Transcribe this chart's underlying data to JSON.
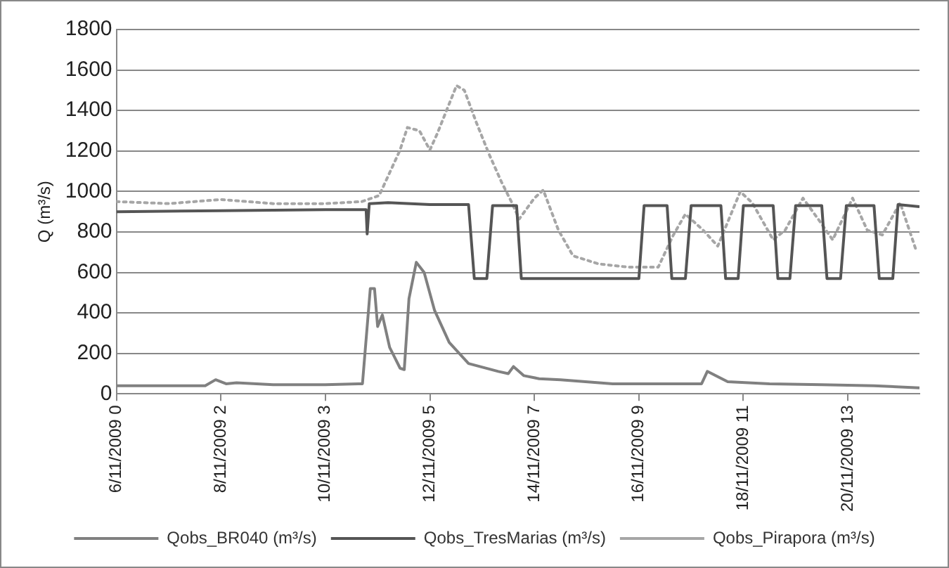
{
  "chart_data": {
    "type": "line",
    "ylabel": "Q (m³/s)",
    "xlim": [
      "2009-11-06",
      "2009-11-21T08:53"
    ],
    "ylim": [
      0,
      1800
    ],
    "yticks": [
      0,
      200,
      400,
      600,
      800,
      1000,
      1200,
      1400,
      1600,
      1800
    ],
    "xticks": [
      {
        "value": "2009-11-06",
        "label": "6/11/2009 0"
      },
      {
        "value": "2009-11-08",
        "label": "8/11/2009 2"
      },
      {
        "value": "2009-11-10",
        "label": "10/11/2009 3"
      },
      {
        "value": "2009-11-12",
        "label": "12/11/2009 5"
      },
      {
        "value": "2009-11-14",
        "label": "14/11/2009 7"
      },
      {
        "value": "2009-11-16",
        "label": "16/11/2009 9"
      },
      {
        "value": "2009-11-18",
        "label": "18/11/2009 11"
      },
      {
        "value": "2009-11-20",
        "label": "20/11/2009 13"
      }
    ],
    "grid": "y",
    "legend": "bottom",
    "marker": "none",
    "series": [
      {
        "name": "Qobs_BR040 (m³/s)",
        "color": "#808080",
        "line_style": "solid",
        "x": [
          "2009-11-06T00:00",
          "2009-11-07T16:48",
          "2009-11-07T21:36",
          "2009-11-08T02:24",
          "2009-11-08T07:12",
          "2009-11-09T00:00",
          "2009-11-10T00:00",
          "2009-11-10T17:02",
          "2009-11-10T20:38",
          "2009-11-10T22:34",
          "2009-11-11T00:00",
          "2009-11-11T02:10",
          "2009-11-11T05:31",
          "2009-11-11T10:19",
          "2009-11-11T12:14",
          "2009-11-11T14:24",
          "2009-11-11T17:46",
          "2009-11-11T21:22",
          "2009-11-12T02:10",
          "2009-11-12T08:53",
          "2009-11-12T17:46",
          "2009-11-13T07:26",
          "2009-11-13T12:00",
          "2009-11-13T14:24",
          "2009-11-13T19:12",
          "2009-11-14T02:10",
          "2009-11-14T12:00",
          "2009-11-15T12:00",
          "2009-11-16T12:00",
          "2009-11-17T04:48",
          "2009-11-17T07:26",
          "2009-11-17T16:48",
          "2009-11-18T12:00",
          "2009-11-19T12:00",
          "2009-11-20T12:00",
          "2009-11-21T08:53"
        ],
        "values": [
          40,
          40,
          70,
          50,
          55,
          45,
          45,
          50,
          520,
          520,
          333,
          390,
          230,
          127,
          120,
          470,
          650,
          600,
          412,
          254,
          150,
          111,
          100,
          135,
          90,
          75,
          70,
          50,
          50,
          50,
          111,
          60,
          50,
          45,
          40,
          30
        ]
      },
      {
        "name": "Qobs_TresMarias (m³/s)",
        "color": "#555555",
        "line_style": "solid",
        "x": [
          "2009-11-06T00:00",
          "2009-11-08T00:00",
          "2009-11-10T00:00",
          "2009-11-10T18:43",
          "2009-11-10T19:12",
          "2009-11-10T20:10",
          "2009-11-11T04:48",
          "2009-11-12T00:00",
          "2009-11-12T17:46",
          "2009-11-12T20:24",
          "2009-11-13T02:10",
          "2009-11-13T04:48",
          "2009-11-13T15:50",
          "2009-11-13T18:00",
          "2009-11-16T00:00",
          "2009-11-16T02:24",
          "2009-11-16T12:58",
          "2009-11-16T15:07",
          "2009-11-16T21:22",
          "2009-11-17T00:00",
          "2009-11-17T13:41",
          "2009-11-17T15:50",
          "2009-11-17T21:36",
          "2009-11-18T00:00",
          "2009-11-18T13:41",
          "2009-11-18T15:50",
          "2009-11-18T21:22",
          "2009-11-19T00:00",
          "2009-11-19T12:00",
          "2009-11-19T14:24",
          "2009-11-19T20:38",
          "2009-11-19T23:17",
          "2009-11-20T12:00",
          "2009-11-20T14:24",
          "2009-11-20T20:38",
          "2009-11-20T23:02",
          "2009-11-21T08:53"
        ],
        "values": [
          900,
          905,
          910,
          910,
          790,
          940,
          945,
          935,
          935,
          570,
          570,
          930,
          930,
          570,
          570,
          930,
          930,
          570,
          570,
          930,
          930,
          570,
          570,
          930,
          930,
          570,
          570,
          930,
          930,
          570,
          570,
          930,
          930,
          570,
          570,
          935,
          925
        ]
      },
      {
        "name": "Qobs_Pirapora (m³/s)",
        "color": "#a6a6a6",
        "line_style": "dotted",
        "x": [
          "2009-11-06T00:00",
          "2009-11-07T00:00",
          "2009-11-08T00:00",
          "2009-11-09T00:00",
          "2009-11-10T00:00",
          "2009-11-10T16:48",
          "2009-11-11T00:43",
          "2009-11-11T10:19",
          "2009-11-11T13:41",
          "2009-11-11T19:12",
          "2009-11-12T00:00",
          "2009-11-12T03:22",
          "2009-11-12T12:14",
          "2009-11-12T15:50",
          "2009-11-12T21:22",
          "2009-11-13T03:22",
          "2009-11-13T08:53",
          "2009-11-13T13:41",
          "2009-11-13T17:02",
          "2009-11-14T00:00",
          "2009-11-14T04:05",
          "2009-11-14T11:02",
          "2009-11-14T17:46",
          "2009-11-15T05:31",
          "2009-11-15T19:12",
          "2009-11-16T08:53",
          "2009-11-16T15:50",
          "2009-11-16T21:22",
          "2009-11-17T05:31",
          "2009-11-17T12:14",
          "2009-11-17T22:34",
          "2009-11-18T04:05",
          "2009-11-18T13:41",
          "2009-11-18T19:12",
          "2009-11-19T03:22",
          "2009-11-19T10:19",
          "2009-11-19T17:02",
          "2009-11-20T02:10",
          "2009-11-20T08:53",
          "2009-11-20T15:50",
          "2009-11-21T00:00",
          "2009-11-21T07:26"
        ],
        "values": [
          950,
          940,
          960,
          940,
          940,
          950,
          980,
          1205,
          1316,
          1300,
          1205,
          1285,
          1523,
          1500,
          1340,
          1180,
          1047,
          944,
          864,
          967,
          1007,
          809,
          682,
          642,
          626,
          626,
          785,
          888,
          809,
          730,
          999,
          944,
          761,
          809,
          967,
          864,
          761,
          967,
          809,
          785,
          944,
          706
        ]
      }
    ]
  }
}
